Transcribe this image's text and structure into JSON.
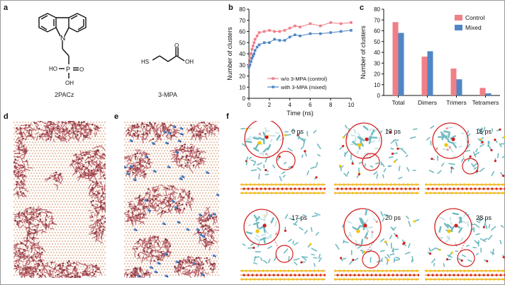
{
  "panels": {
    "a": {
      "label": "a",
      "molecules": [
        {
          "name": "2PACz",
          "atoms": [
            "N",
            "HO",
            "P",
            "O",
            "OH"
          ]
        },
        {
          "name": "3-MPA",
          "atoms": [
            "HS",
            "O",
            "OH"
          ]
        }
      ]
    },
    "b": {
      "label": "b"
    },
    "c": {
      "label": "c"
    },
    "d": {
      "label": "d"
    },
    "e": {
      "label": "e"
    },
    "f": {
      "label": "f",
      "snapshots": [
        {
          "time": "0 ps"
        },
        {
          "time": "13 ps"
        },
        {
          "time": "15 ps"
        },
        {
          "time": "17 ps"
        },
        {
          "time": "20 ps"
        },
        {
          "time": "28 ps"
        }
      ]
    }
  },
  "colors": {
    "control": "#f07f86",
    "mixed": "#4f86c6",
    "molecule": "#b8636a",
    "substrate": "#e9c9b4",
    "cyan": "#6fbac1",
    "red_atom": "#d42020",
    "yellow_atom": "#f2c500"
  },
  "chart_data": [
    {
      "type": "line",
      "xlabel": "Time (ns)",
      "ylabel": "Number of clusters",
      "xlim": [
        0,
        10
      ],
      "ylim": [
        0,
        80
      ],
      "xticks": [
        "0",
        "2",
        "4",
        "6",
        "8",
        "10"
      ],
      "yticks": [
        "0",
        "10",
        "20",
        "30",
        "40",
        "50",
        "60",
        "70",
        "80"
      ],
      "legend_position": "right",
      "series": [
        {
          "name": "w/o 3-MPA (control)",
          "color": "#f07f86",
          "x": [
            0,
            0.1,
            0.2,
            0.3,
            0.4,
            0.5,
            0.6,
            0.8,
            1,
            1.5,
            2,
            2.5,
            3,
            3.5,
            4,
            4.5,
            5,
            6,
            7,
            8,
            9,
            10
          ],
          "y": [
            30,
            36,
            40,
            44,
            47,
            50,
            53,
            56,
            59,
            60,
            61,
            60,
            60,
            61,
            63,
            65,
            64,
            67,
            65,
            68,
            67,
            68
          ]
        },
        {
          "name": "with 3-MPA (mixed)",
          "color": "#4f86c6",
          "x": [
            0,
            0.1,
            0.2,
            0.3,
            0.4,
            0.5,
            0.6,
            0.8,
            1,
            1.5,
            2,
            2.5,
            3,
            3.5,
            4,
            4.5,
            5,
            6,
            7,
            8,
            9,
            10
          ],
          "y": [
            28,
            30,
            33,
            36,
            38,
            40,
            43,
            46,
            48,
            50,
            50,
            53,
            52,
            52,
            55,
            57,
            56,
            58,
            58,
            59,
            60,
            61
          ]
        }
      ]
    },
    {
      "type": "bar",
      "ylabel": "Number of clusters",
      "ylim": [
        0,
        80
      ],
      "yticks": [
        "0",
        "10",
        "20",
        "30",
        "40",
        "50",
        "60",
        "70",
        "80"
      ],
      "categories": [
        "Total",
        "Dimers",
        "Trimers",
        "Tetramers"
      ],
      "legend_position": "top-right",
      "series": [
        {
          "name": "Control",
          "color": "#f07f86",
          "values": [
            68,
            36,
            25,
            7
          ]
        },
        {
          "name": "Mixed",
          "color": "#4f86c6",
          "values": [
            58,
            41,
            15,
            2
          ]
        }
      ]
    }
  ]
}
